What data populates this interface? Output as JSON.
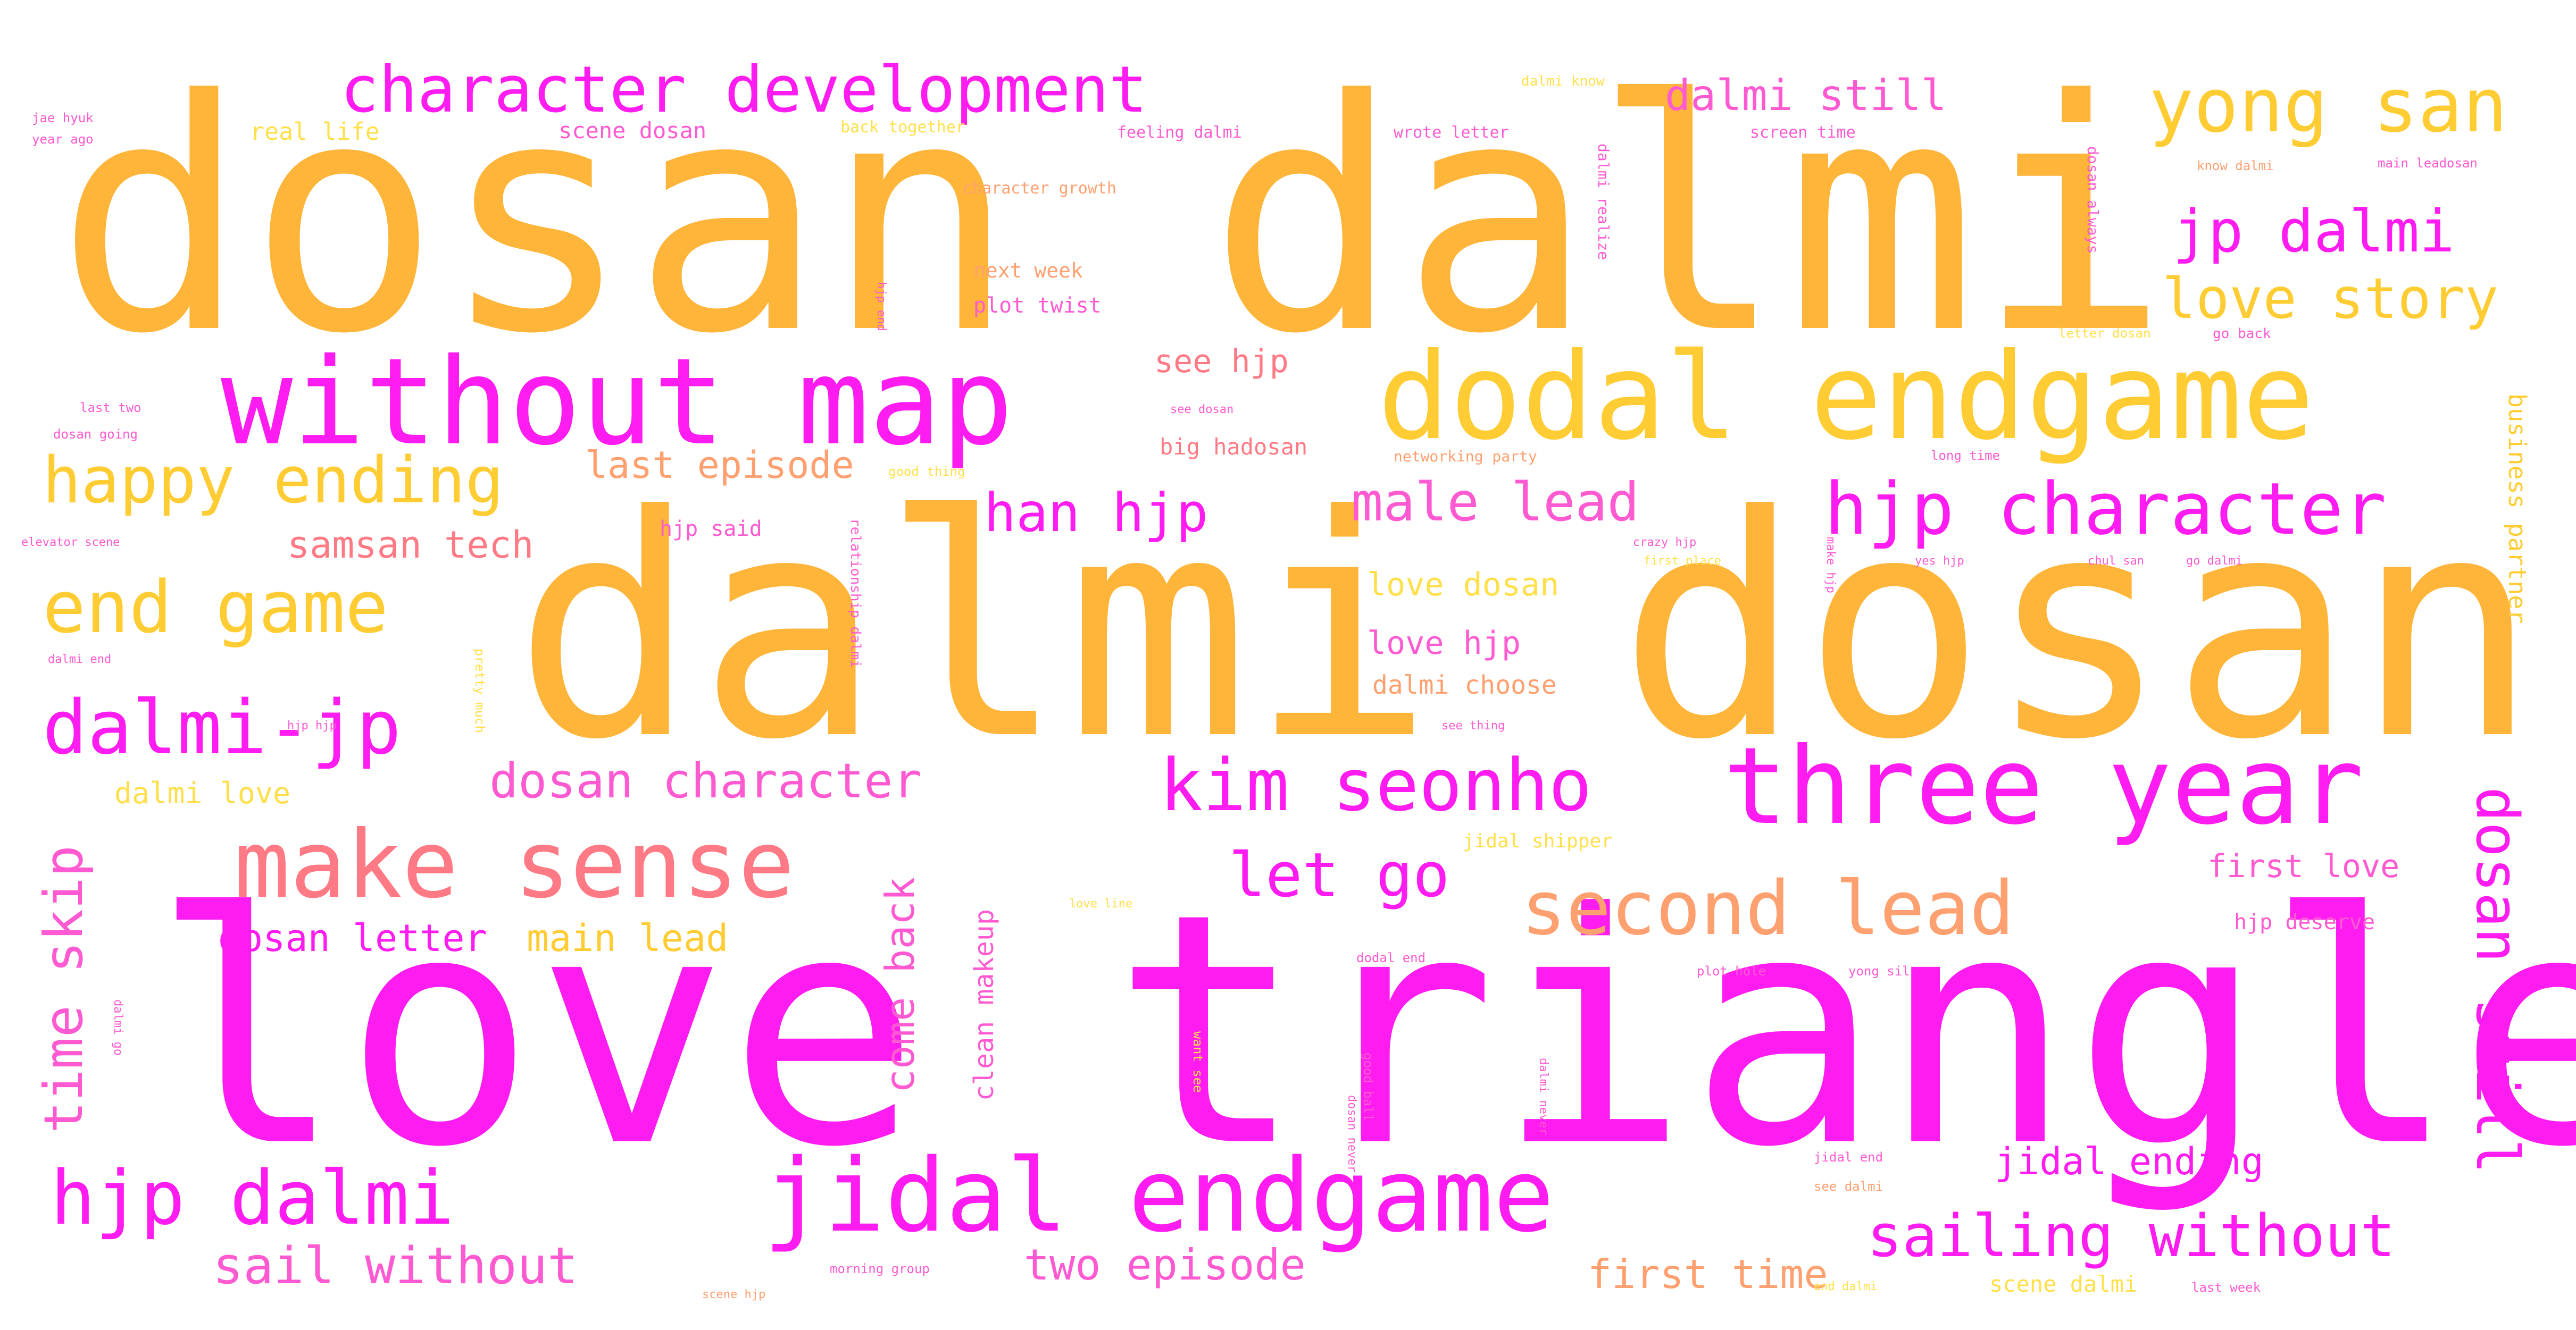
{
  "colors": {
    "background": "#ffffff",
    "orange": "#ffb43a",
    "magenta": "#ff1cf0",
    "gold": "#ffcc33",
    "salmon": "#ff7a85",
    "peach": "#ffa070",
    "pink": "#ff5ad1",
    "yellow": "#ffe04a"
  },
  "words": [
    {
      "text": "dosan dalmi",
      "color": "orange"
    },
    {
      "text": "dalmi dosan",
      "color": "orange"
    },
    {
      "text": "love triangle",
      "color": "magenta"
    },
    {
      "text": "without map",
      "color": "magenta"
    },
    {
      "text": "dodal endgame",
      "color": "gold"
    },
    {
      "text": "make sense",
      "color": "salmon"
    },
    {
      "text": "three year",
      "color": "magenta"
    },
    {
      "text": "jidal endgame",
      "color": "magenta"
    },
    {
      "text": "hjp dalmi",
      "color": "magenta"
    },
    {
      "text": "character development",
      "color": "magenta"
    },
    {
      "text": "yong san",
      "color": "gold"
    },
    {
      "text": "hjp character",
      "color": "magenta"
    },
    {
      "text": "second lead",
      "color": "peach"
    },
    {
      "text": "kim seonho",
      "color": "magenta"
    },
    {
      "text": "dalmi-jp",
      "color": "magenta"
    },
    {
      "text": "end game",
      "color": "gold"
    },
    {
      "text": "happy ending",
      "color": "gold"
    },
    {
      "text": "jp dalmi",
      "color": "magenta"
    },
    {
      "text": "love story",
      "color": "gold"
    },
    {
      "text": "sailing without",
      "color": "magenta"
    },
    {
      "text": "dosan still",
      "color": "magenta"
    },
    {
      "text": "let go",
      "color": "magenta"
    },
    {
      "text": "han hjp",
      "color": "magenta"
    },
    {
      "text": "male lead",
      "color": "pink"
    },
    {
      "text": "dosan character",
      "color": "pink"
    },
    {
      "text": "time skip",
      "color": "pink"
    },
    {
      "text": "sail without",
      "color": "pink"
    },
    {
      "text": "two episode",
      "color": "pink"
    },
    {
      "text": "come back",
      "color": "pink"
    },
    {
      "text": "dalmi still",
      "color": "pink"
    },
    {
      "text": "first time",
      "color": "peach"
    },
    {
      "text": "jidal ending",
      "color": "magenta"
    },
    {
      "text": "last episode",
      "color": "peach"
    },
    {
      "text": "dosan letter",
      "color": "magenta"
    },
    {
      "text": "main lead",
      "color": "gold"
    },
    {
      "text": "samsan tech",
      "color": "salmon"
    },
    {
      "text": "love dosan",
      "color": "yellow"
    },
    {
      "text": "love hjp",
      "color": "pink"
    },
    {
      "text": "see hjp",
      "color": "salmon"
    },
    {
      "text": "dalmi choose",
      "color": "peach"
    },
    {
      "text": "dalmi love",
      "color": "yellow"
    },
    {
      "text": "first love",
      "color": "pink"
    },
    {
      "text": "clean makeup",
      "color": "pink"
    },
    {
      "text": "business partner",
      "color": "gold"
    },
    {
      "text": "real life",
      "color": "yellow"
    },
    {
      "text": "scene dosan",
      "color": "pink"
    },
    {
      "text": "next week",
      "color": "peach"
    },
    {
      "text": "plot twist",
      "color": "pink"
    },
    {
      "text": "big hadosan",
      "color": "salmon"
    },
    {
      "text": "hjp said",
      "color": "pink"
    },
    {
      "text": "hjp deserve",
      "color": "pink"
    },
    {
      "text": "scene dalmi",
      "color": "yellow"
    },
    {
      "text": "character growth",
      "color": "peach"
    },
    {
      "text": "jidal shipper",
      "color": "yellow"
    },
    {
      "text": "dalmi realize",
      "color": "pink"
    },
    {
      "text": "dosan always",
      "color": "pink"
    },
    {
      "text": "relationship dalmi",
      "color": "pink"
    },
    {
      "text": "pretty much",
      "color": "yellow"
    },
    {
      "text": "networking party",
      "color": "peach"
    },
    {
      "text": "good thing",
      "color": "yellow"
    },
    {
      "text": "back together",
      "color": "yellow"
    },
    {
      "text": "feeling dalmi",
      "color": "pink"
    },
    {
      "text": "wrote letter",
      "color": "pink"
    },
    {
      "text": "screen time",
      "color": "pink"
    },
    {
      "text": "dalmi know",
      "color": "yellow"
    },
    {
      "text": "know dalmi",
      "color": "peach"
    },
    {
      "text": "main leadosan",
      "color": "pink"
    },
    {
      "text": "letter dosan",
      "color": "yellow"
    },
    {
      "text": "go back",
      "color": "pink"
    },
    {
      "text": "long time",
      "color": "pink"
    },
    {
      "text": "want see",
      "color": "yellow"
    },
    {
      "text": "jidal end",
      "color": "pink"
    },
    {
      "text": "see dalmi",
      "color": "peach"
    },
    {
      "text": "morning group",
      "color": "pink"
    },
    {
      "text": "scene hjp",
      "color": "peach"
    },
    {
      "text": "end dalmi",
      "color": "yellow"
    },
    {
      "text": "last week",
      "color": "pink"
    },
    {
      "text": "good ball",
      "color": "pink"
    },
    {
      "text": "yong sil",
      "color": "pink"
    },
    {
      "text": "plot hole",
      "color": "pink"
    },
    {
      "text": "dodal end",
      "color": "pink"
    },
    {
      "text": "love line",
      "color": "yellow"
    },
    {
      "text": "jae hyuk",
      "color": "pink"
    },
    {
      "text": "year ago",
      "color": "pink"
    },
    {
      "text": "last two",
      "color": "pink"
    },
    {
      "text": "dosan going",
      "color": "pink"
    },
    {
      "text": "elevator scene",
      "color": "pink"
    },
    {
      "text": "dalmi end",
      "color": "pink"
    },
    {
      "text": "see dosan",
      "color": "pink"
    },
    {
      "text": "first place",
      "color": "yellow"
    },
    {
      "text": "crazy hjp",
      "color": "pink"
    },
    {
      "text": "chul san",
      "color": "pink"
    },
    {
      "text": "go dalmi",
      "color": "pink"
    },
    {
      "text": "see thing",
      "color": "pink"
    },
    {
      "text": "hjp end",
      "color": "pink"
    },
    {
      "text": "dalmi go",
      "color": "pink"
    },
    {
      "text": "dosan never",
      "color": "pink"
    },
    {
      "text": "dalmi never",
      "color": "pink"
    },
    {
      "text": "make hjp",
      "color": "pink"
    },
    {
      "text": "hjp hjp",
      "color": "pink"
    },
    {
      "text": "yes hjp",
      "color": "pink"
    }
  ]
}
